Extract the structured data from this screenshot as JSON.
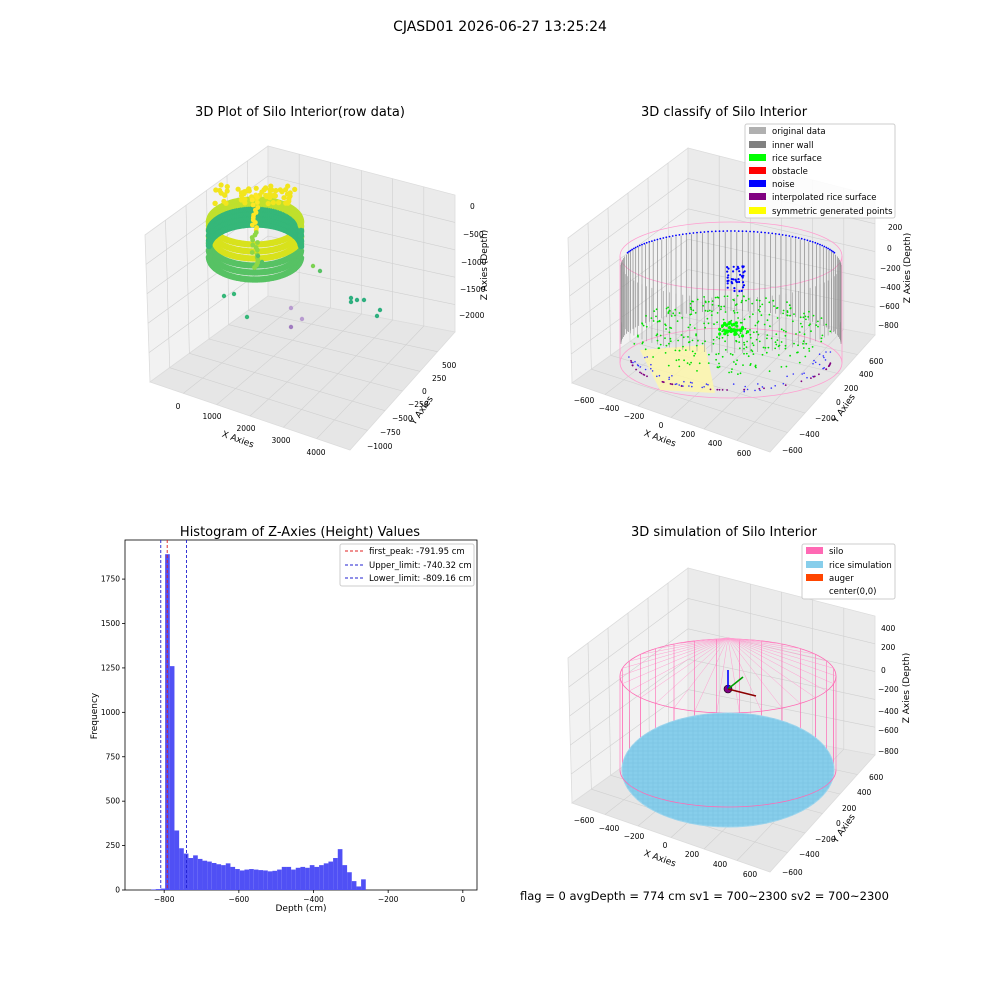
{
  "suptitle": "CJASD01 2026-06-27 13:25:24",
  "footer": "flag = 0     avgDepth = 774 cm  sv1 = 700~2300  sv2 = 700~2300",
  "colors": {
    "hist": "#5050f5",
    "peak": "#e02020",
    "limits": "#2020d0",
    "silo": "#ff69b4",
    "rice": "#87ceeb",
    "auger": "#ff4500",
    "original": "#b0b0b0",
    "inner_wall": "#808080",
    "rice_surface": "#00ff00",
    "obstacle": "#ff0000",
    "noise": "#0000ff",
    "interpolated": "#800080",
    "symmetric": "#ffff00"
  },
  "chart_data": [
    {
      "type": "scatter",
      "title": "3D Plot of Silo Interior(row data)",
      "xlabel": "X Axies",
      "ylabel": "Y Axies",
      "zlabel": "Z Axies (Depth)",
      "x_ticks": [
        "0",
        "1000",
        "2000",
        "3000",
        "4000"
      ],
      "y_ticks": [
        "500",
        "250",
        "0",
        "−250",
        "−500",
        "−750",
        "−1000"
      ],
      "z_ticks": [
        "0",
        "−500",
        "−1000",
        "−1500",
        "−2000"
      ]
    },
    {
      "type": "scatter",
      "title": "3D classify of Silo Interior",
      "xlabel": "X Axies",
      "ylabel": "Y Axies",
      "zlabel": "Z Axies (Depth)",
      "x_ticks": [
        "−600",
        "−400",
        "−200",
        "0",
        "200",
        "400",
        "600"
      ],
      "y_ticks": [
        "600",
        "400",
        "200",
        "0",
        "−200",
        "−400",
        "−600"
      ],
      "z_ticks": [
        "200",
        "0",
        "−200",
        "−400",
        "−600",
        "−800"
      ],
      "legend": [
        "original data",
        "inner wall",
        "rice surface",
        "obstacle",
        "noise",
        "interpolated rice surface",
        "symmetric generated points"
      ],
      "legend_position": "top-right"
    },
    {
      "type": "bar",
      "title": "Histogram of Z-Axies (Height) Values",
      "xlabel": "Depth (cm)",
      "ylabel": "Frequency",
      "xlim": [
        -905,
        38
      ],
      "ylim": [
        0,
        1970
      ],
      "x_ticks": [
        -800,
        -600,
        -400,
        -200,
        0
      ],
      "y_ticks": [
        0,
        250,
        500,
        750,
        1000,
        1250,
        1500,
        1750
      ],
      "bin_start": -835,
      "bin_width": 12.5,
      "values": [
        3,
        5,
        8,
        1890,
        1260,
        335,
        235,
        205,
        180,
        195,
        175,
        165,
        160,
        152,
        145,
        140,
        150,
        130,
        118,
        110,
        115,
        118,
        115,
        112,
        110,
        105,
        108,
        115,
        130,
        130,
        115,
        125,
        130,
        125,
        140,
        130,
        140,
        150,
        160,
        180,
        230,
        140,
        100,
        50,
        20,
        60
      ],
      "legend": [
        {
          "label": "first_peak: -791.95 cm",
          "value": -791.95
        },
        {
          "label": "Upper_limit: -740.32 cm",
          "value": -740.32
        },
        {
          "label": "Lower_limit: -809.16 cm",
          "value": -809.16
        }
      ],
      "legend_position": "top-right"
    },
    {
      "type": "scatter",
      "title": "3D simulation of Silo Interior",
      "xlabel": "X Axies",
      "ylabel": "Y Axies",
      "zlabel": "Z Axies (Depth)",
      "x_ticks": [
        "−600",
        "−400",
        "−200",
        "0",
        "200",
        "400",
        "600"
      ],
      "y_ticks": [
        "600",
        "400",
        "200",
        "0",
        "−200",
        "−400",
        "−600"
      ],
      "z_ticks": [
        "400",
        "200",
        "0",
        "−200",
        "−400",
        "−600",
        "−800"
      ],
      "legend": [
        "silo",
        "rice simulation",
        "auger",
        "center(0,0)"
      ],
      "legend_position": "top-right"
    }
  ]
}
